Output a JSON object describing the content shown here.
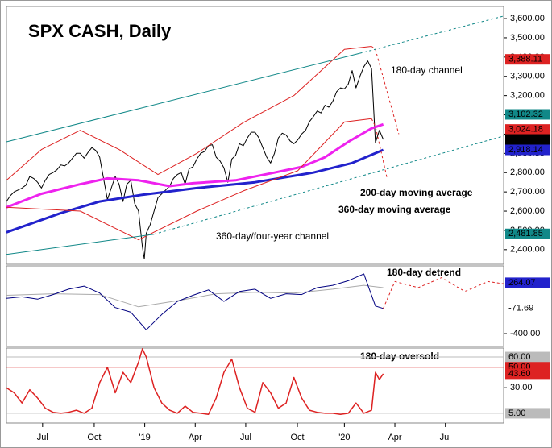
{
  "chart_data": [
    {
      "type": "line",
      "title": "SPX CASH, Daily",
      "xlim": [
        -4,
        124
      ],
      "xticks": [
        {
          "value": 5.3,
          "label": "Jul"
        },
        {
          "value": 18.6,
          "label": "Oct"
        },
        {
          "value": 31.6,
          "label": "'19"
        },
        {
          "value": 44.6,
          "label": "Apr"
        },
        {
          "value": 57.6,
          "label": "Jul"
        },
        {
          "value": 70.9,
          "label": "Oct"
        },
        {
          "value": 83,
          "label": "'20"
        },
        {
          "value": 96,
          "label": "Apr"
        },
        {
          "value": 109,
          "label": "Jul"
        }
      ],
      "ylim": [
        2324,
        3663
      ],
      "yticks": [
        {
          "value": 2400,
          "label": "2,400.00"
        },
        {
          "value": 2500,
          "label": "2,500.00"
        },
        {
          "value": 2600,
          "label": "2,600.00"
        },
        {
          "value": 2700,
          "label": "2,700.00"
        },
        {
          "value": 2800,
          "label": "2,800.00"
        },
        {
          "value": 2900,
          "label": "2,900.00"
        },
        {
          "value": 3000,
          "label": "3,000.00"
        },
        {
          "value": 3100,
          "label": "3,100.00"
        },
        {
          "value": 3200,
          "label": "3,200.00"
        },
        {
          "value": 3300,
          "label": "3,300.00"
        },
        {
          "value": 3400,
          "label": "3,400.00"
        },
        {
          "value": 3500,
          "label": "3,500.00"
        },
        {
          "value": 3600,
          "label": "3,600.00"
        }
      ],
      "series": [
        {
          "color": "#000000",
          "width": 1,
          "x": [
            -4,
            -3,
            -2,
            -1,
            0,
            1,
            2,
            3,
            4,
            5,
            6,
            7,
            8,
            9,
            10,
            11,
            12,
            13,
            14,
            15,
            16,
            17,
            18,
            19,
            20,
            21,
            22,
            23,
            24,
            25,
            26,
            27,
            28,
            29,
            30,
            31,
            31.5,
            32,
            33,
            34,
            35,
            36,
            37,
            38,
            39,
            40,
            41,
            42,
            43,
            44,
            45,
            46,
            47,
            48,
            49,
            50,
            51,
            52,
            53,
            54,
            55,
            56,
            57,
            58,
            59,
            60,
            61,
            62,
            63,
            64,
            65,
            66,
            67,
            68,
            69,
            70,
            71,
            72,
            73,
            74,
            75,
            76,
            77,
            78,
            79,
            80,
            81,
            82,
            83,
            84,
            85,
            86,
            87,
            88,
            89,
            90,
            91,
            92,
            93
          ],
          "values": [
            2650,
            2680,
            2700,
            2710,
            2720,
            2735,
            2780,
            2770,
            2750,
            2720,
            2760,
            2790,
            2800,
            2815,
            2840,
            2835,
            2850,
            2875,
            2900,
            2900,
            2875,
            2905,
            2930,
            2915,
            2880,
            2770,
            2660,
            2720,
            2780,
            2740,
            2650,
            2740,
            2760,
            2640,
            2600,
            2415,
            2351,
            2485,
            2530,
            2600,
            2670,
            2690,
            2710,
            2730,
            2770,
            2790,
            2800,
            2740,
            2820,
            2830,
            2870,
            2900,
            2910,
            2940,
            2945,
            2880,
            2860,
            2825,
            2750,
            2870,
            2890,
            2950,
            2940,
            2980,
            3010,
            3010,
            2980,
            2930,
            2880,
            2850,
            2900,
            2980,
            3005,
            2995,
            2965,
            2950,
            2970,
            3000,
            3020,
            3065,
            3090,
            3120,
            3110,
            3150,
            3140,
            3170,
            3220,
            3240,
            3235,
            3260,
            3330,
            3240,
            3300,
            3350,
            3380,
            3340,
            2955,
            3020,
            2972.37
          ]
        },
        {
          "name": "200-day moving average",
          "color": "#ee22ee",
          "width": 3,
          "x": [
            -4,
            5,
            15,
            22,
            30,
            38,
            44,
            55,
            65,
            72,
            78,
            84,
            90,
            93
          ],
          "values": [
            2620,
            2690,
            2740,
            2770,
            2760,
            2730,
            2745,
            2760,
            2800,
            2830,
            2880,
            2960,
            3030,
            3051
          ]
        },
        {
          "name": "360-day moving average",
          "color": "#2222cc",
          "width": 3,
          "x": [
            -4,
            10,
            20,
            31,
            45,
            60,
            75,
            85,
            93
          ],
          "values": [
            2490,
            2590,
            2650,
            2685,
            2720,
            2750,
            2800,
            2850,
            2918.14
          ]
        },
        {
          "name": "180-day channel",
          "color": "#dd2222",
          "width": 1,
          "x": [
            -4,
            5,
            15,
            25,
            35,
            45,
            57,
            70,
            83,
            90
          ],
          "values": [
            2760,
            2920,
            3020,
            2920,
            2790,
            2900,
            3060,
            3200,
            3440,
            3456
          ]
        },
        {
          "color": "#dd2222",
          "width": 1,
          "dash": true,
          "x": [
            90,
            91,
            97
          ],
          "values": [
            3456,
            3440,
            3000
          ]
        },
        {
          "color": "#dd2222",
          "width": 1,
          "x": [
            -4,
            15,
            30,
            45,
            57,
            71,
            83,
            90
          ],
          "values": [
            2620,
            2600,
            2451,
            2600,
            2705,
            2810,
            3063,
            3080
          ]
        },
        {
          "color": "#dd2222",
          "width": 1,
          "dash": true,
          "x": [
            90,
            91,
            94
          ],
          "values": [
            3080,
            3040,
            2770
          ]
        },
        {
          "name": "360-day/four-year channel",
          "color": "#118888",
          "width": 1,
          "x": [
            -4,
            87
          ],
          "values": [
            2960,
            3420
          ]
        },
        {
          "color": "#118888",
          "width": 1,
          "dash": true,
          "x": [
            87,
            124
          ],
          "values": [
            3420,
            3613
          ]
        },
        {
          "color": "#118888",
          "width": 1,
          "x": [
            -4,
            34
          ],
          "values": [
            2375,
            2480
          ]
        },
        {
          "color": "#118888",
          "width": 1,
          "dash": true,
          "x": [
            34,
            124
          ],
          "values": [
            2480,
            2990
          ]
        }
      ],
      "tags": [
        {
          "value": 3388.11,
          "label": "3,388.11",
          "bg": "#dd2222",
          "fg": "#ffffff"
        },
        {
          "value": 3102.32,
          "label": "3,102.32",
          "bg": "#118888",
          "fg": "#ffffff"
        },
        {
          "value": 3024.18,
          "label": "3,024.18",
          "bg": "#dd2222",
          "fg": "#ffffff"
        },
        {
          "value": 2972.37,
          "label": "2,972.37",
          "bg": "#000000",
          "fg": "#ffffff"
        },
        {
          "value": 2918.14,
          "label": "2,918.14",
          "bg": "#2222cc",
          "fg": "#ffffff"
        },
        {
          "value": 2481.85,
          "label": "2,481.85",
          "bg": "#118888",
          "fg": "#ffffff"
        }
      ]
    },
    {
      "type": "line",
      "title": "180-day detrend",
      "ylim": [
        -568,
        484
      ],
      "yticks": [
        {
          "value": -400,
          "label": "-400.00"
        }
      ],
      "series": [
        {
          "color": "#aaaaaa",
          "width": 1,
          "x": [
            -4,
            8,
            20,
            30,
            40,
            50,
            60,
            70,
            80,
            88,
            93
          ],
          "values": [
            100,
            120,
            110,
            -50,
            30,
            120,
            140,
            130,
            180,
            230,
            200
          ]
        },
        {
          "color": "#000080",
          "width": 1,
          "x": [
            -4,
            0,
            4,
            8,
            12,
            16,
            20,
            24,
            28,
            32,
            36,
            40,
            44,
            48,
            52,
            56,
            60,
            64,
            68,
            72,
            76,
            80,
            84,
            88,
            91,
            93
          ],
          "values": [
            60,
            80,
            50,
            110,
            180,
            220,
            130,
            -60,
            -120,
            -350,
            -150,
            20,
            100,
            170,
            20,
            150,
            180,
            60,
            120,
            110,
            200,
            230,
            290,
            380,
            -40,
            -71.69
          ]
        },
        {
          "color": "#dd2222",
          "width": 1,
          "dash": true,
          "x": [
            93,
            96,
            102,
            108,
            114,
            120,
            124
          ],
          "values": [
            -71.69,
            280,
            200,
            330,
            150,
            280,
            250
          ]
        }
      ],
      "tags": [
        {
          "value": 264.07,
          "label": "264.07",
          "bg": "#2222cc",
          "fg": "#ffffff"
        },
        {
          "value": -71.69,
          "label": "-71.69",
          "bg": "#ffffff",
          "fg": "#000000"
        }
      ]
    },
    {
      "type": "line",
      "title": "180-day oversold",
      "ylim": [
        -4.5,
        68.7
      ],
      "yticks": [
        {
          "value": 30,
          "label": "30.00"
        }
      ],
      "levels": [
        {
          "value": 60,
          "label": "60.00",
          "color": "#bbbbbb"
        },
        {
          "value": 50,
          "label": "50.00",
          "color": "#dd2222"
        },
        {
          "value": 5,
          "label": "5.00",
          "color": "#bbbbbb"
        }
      ],
      "series": [
        {
          "color": "#dd2222",
          "width": 1.5,
          "x": [
            -4,
            -2,
            0,
            2,
            4,
            6,
            8,
            10,
            12,
            14,
            16,
            18,
            20,
            22,
            24,
            26,
            28,
            30,
            31,
            32,
            34,
            36,
            38,
            40,
            42,
            44,
            46,
            48,
            50,
            52,
            54,
            56,
            58,
            60,
            62,
            64,
            66,
            68,
            70,
            72,
            74,
            76,
            78,
            80,
            82,
            84,
            86,
            88,
            90,
            91,
            92,
            93
          ],
          "values": [
            30,
            25,
            15,
            28,
            20,
            10,
            6,
            5,
            6,
            8,
            5,
            10,
            35,
            50,
            25,
            45,
            35,
            55,
            68,
            60,
            30,
            15,
            8,
            5,
            12,
            6,
            5,
            4,
            20,
            45,
            58,
            30,
            10,
            6,
            35,
            25,
            10,
            15,
            40,
            20,
            8,
            6,
            5,
            5,
            4,
            5,
            15,
            5,
            8,
            45,
            38,
            43.6
          ]
        }
      ],
      "tags": [
        {
          "value": 43.6,
          "label": "43.60",
          "bg": "#dd2222",
          "fg": "#ffffff"
        }
      ]
    }
  ]
}
